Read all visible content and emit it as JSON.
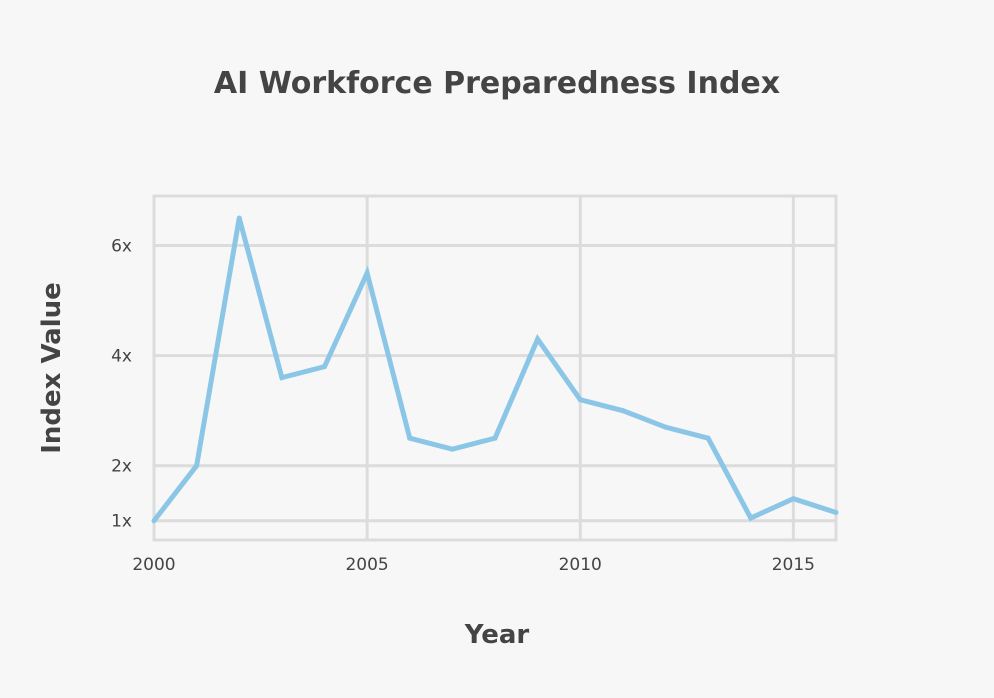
{
  "chart_data": {
    "type": "line",
    "title": "AI Workforce Preparedness Index",
    "xlabel": "Year",
    "ylabel": "Index Value",
    "x": [
      2000,
      2001,
      2002,
      2003,
      2004,
      2005,
      2006,
      2007,
      2008,
      2009,
      2010,
      2011,
      2012,
      2013,
      2014,
      2015,
      2016
    ],
    "series": [
      {
        "values": [
          1.0,
          2.0,
          6.5,
          3.6,
          3.8,
          5.5,
          2.5,
          2.3,
          2.5,
          4.3,
          3.2,
          3.0,
          2.7,
          2.5,
          1.05,
          1.4,
          1.15
        ],
        "color": "#8cc6e7"
      }
    ],
    "xlim": [
      2000,
      2016
    ],
    "ylim": [
      0.65,
      6.9
    ],
    "xticks": [
      2000,
      2005,
      2010,
      2015
    ],
    "xtick_labels": [
      "2000",
      "2005",
      "2010",
      "2015"
    ],
    "yticks": [
      1,
      2,
      4,
      6
    ],
    "ytick_labels": [
      "1x",
      "2x",
      "4x",
      "6x"
    ],
    "grid": true,
    "legend": "none"
  }
}
